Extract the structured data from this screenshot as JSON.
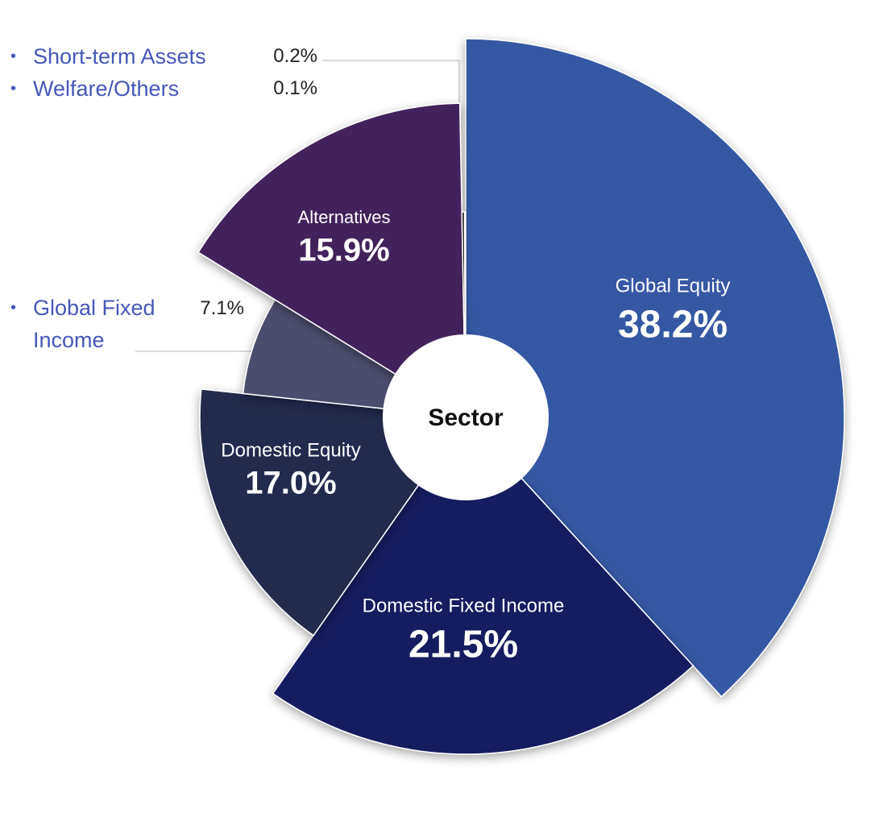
{
  "chart_data": {
    "type": "pie",
    "center_label": "Sector",
    "categories": [
      "Global Equity",
      "Domestic Fixed Income",
      "Domestic Equity",
      "Global Fixed Income",
      "Alternatives",
      "Short-term Assets",
      "Welfare/Others"
    ],
    "values": [
      38.2,
      21.5,
      17.0,
      7.1,
      15.9,
      0.2,
      0.1
    ],
    "value_labels": [
      "38.2%",
      "21.5%",
      "17.0%",
      "7.1%",
      "15.9%",
      "0.2%",
      "0.1%"
    ],
    "colors": [
      "#3459a3",
      "#161c60",
      "#222b4e",
      "#4b4e6c",
      "#42245c",
      "#151515",
      "#d8d8d8"
    ]
  }
}
